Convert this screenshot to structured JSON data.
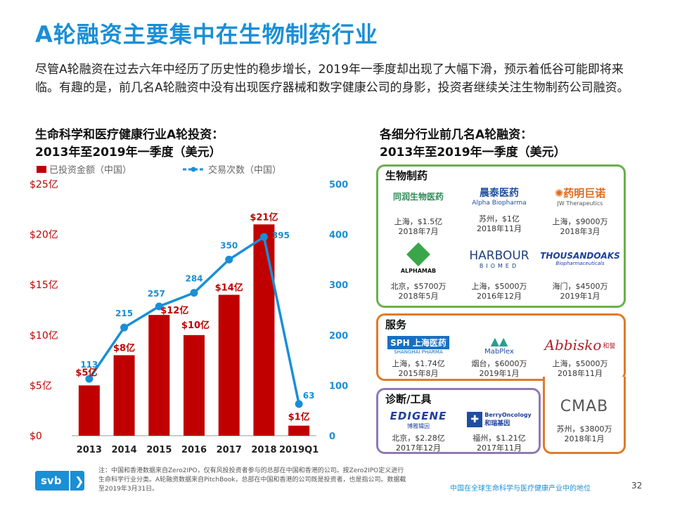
{
  "title": "A轮融资主要集中在生物制药行业",
  "intro": "尽管A轮融资在过去六年中经历了历史性的稳步增长，2019年一季度却出现了大幅下滑，预示着低谷可能即将来临。有趣的是，前几名A轮融资中没有出现医疗器械和数字健康公司的身影，投资者继续关注生物制药公司融资。",
  "left_subtitle": {
    "line1": "生命科学和医疗健康行业A轮投资：",
    "line2": "2013年至2019年一季度（美元）"
  },
  "right_subtitle": {
    "line1": "各细分行业前几名A轮融资：",
    "line2": "2013年至2019年一季度（美元）"
  },
  "chart_data": {
    "type": "bar",
    "categories": [
      "2013",
      "2014",
      "2015",
      "2016",
      "2017",
      "2018",
      "2019Q1"
    ],
    "series": [
      {
        "name": "已投资金额（中国）",
        "type": "bar",
        "axis": "left",
        "unit": "亿美元",
        "values": [
          5,
          8,
          12,
          10,
          14,
          21,
          1
        ],
        "labels": [
          "$5亿",
          "$8亿",
          "$12亿",
          "$10亿",
          "$14亿",
          "$21亿",
          "$1亿"
        ]
      },
      {
        "name": "交易次数（中国）",
        "type": "line",
        "axis": "right",
        "values": [
          113,
          215,
          257,
          284,
          350,
          395,
          63
        ]
      }
    ],
    "y_left": {
      "ticks": [
        "$0",
        "$5亿",
        "$10亿",
        "$15亿",
        "$20亿",
        "$25亿"
      ],
      "lim": [
        0,
        25
      ]
    },
    "y_right": {
      "ticks": [
        "0",
        "100",
        "200",
        "300",
        "400",
        "500"
      ],
      "lim": [
        0,
        500
      ]
    },
    "legend_position": "top",
    "grid": false,
    "colors": {
      "bar": "#c00000",
      "line": "#1a8fd6"
    }
  },
  "segments": {
    "biopharma": {
      "title": "生物制药",
      "companies": [
        {
          "logo": "同润生物医药",
          "line1": "上海，$1.5亿",
          "line2": "2018年7月"
        },
        {
          "logo": "晨泰医药",
          "logo_sub": "Alpha Biopharma",
          "line1": "苏州，$1亿",
          "line2": "2018年11月"
        },
        {
          "logo": "药明巨诺",
          "logo_sub": "JW Therapeutics",
          "line1": "上海，$9000万",
          "line2": "2018年3月"
        },
        {
          "logo": "ALPHAMAB",
          "line1": "北京，$5700万",
          "line2": "2018年5月"
        },
        {
          "logo": "HARBOUR",
          "logo_sub": "BIOMED",
          "line1": "上海，$5000万",
          "line2": "2016年12月"
        },
        {
          "logo": "THOUSANDOAKS",
          "logo_sub": "Biopharmaceuticals",
          "line1": "海门，$4500万",
          "line2": "2019年1月"
        }
      ]
    },
    "services": {
      "title": "服务",
      "companies": [
        {
          "logo": "SPH 上海医药",
          "logo_sub": "SHANGHAI PHARMA",
          "line1": "上海，$1.74亿",
          "line2": "2015年8月"
        },
        {
          "logo": "MabPlex",
          "line1": "烟台，$6000万",
          "line2": "2019年1月"
        },
        {
          "logo": "Abbisko",
          "logo_sub": "和誉",
          "line1": "上海，$5000万",
          "line2": "2018年11月"
        }
      ]
    },
    "diagnostics": {
      "title": "诊断/工具",
      "companies": [
        {
          "logo": "EDIGENE",
          "logo_sub": "博雅辑因",
          "line1": "北京，$2.28亿",
          "line2": "2017年12月"
        },
        {
          "logo": "BerryOncology",
          "logo_sub": "和瑞基因",
          "line1": "福州，$1.21亿",
          "line2": "2017年11月"
        }
      ]
    },
    "cmab": {
      "logo": "CMAB",
      "line1": "苏州，$3800万",
      "line2": "2018年1月"
    }
  },
  "footer": {
    "note": "注：中国和香港数据来自Zero2IPO，仅有风投投资者参与的总部在中国和香港的公司。按Zero2IPO定义进行生命科学行业分类。A轮融资数据来自PitchBook，总部在中国和香港的公司既是投资者，也是指公司。数据截至2019年3月31日。",
    "brand": "svb",
    "chevron": "❯",
    "right_text": "中国在全球生命科学与医疗健康产业中的地位",
    "page": "32"
  },
  "colors": {
    "accent": "#1a8fd6",
    "green": "#6ab04c",
    "orange": "#e07b2a",
    "purple": "#8e7bb5"
  }
}
